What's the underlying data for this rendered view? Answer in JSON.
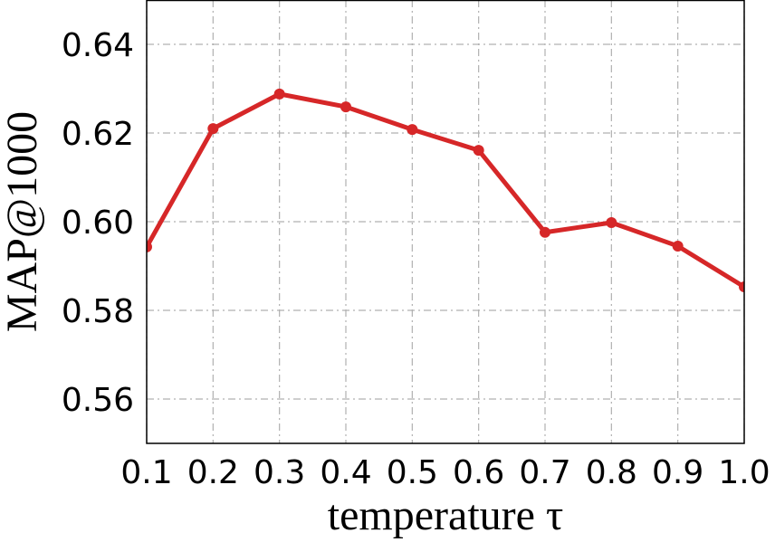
{
  "chart_data": {
    "type": "line",
    "x": [
      0.1,
      0.2,
      0.3,
      0.4,
      0.5,
      0.6,
      0.7,
      0.8,
      0.9,
      1.0
    ],
    "series": [
      {
        "color": "#d62728",
        "values": [
          0.5943,
          0.621,
          0.6288,
          0.6259,
          0.6208,
          0.6161,
          0.5976,
          0.5998,
          0.5945,
          0.5853
        ]
      }
    ],
    "xlim": [
      0.1,
      1.0
    ],
    "ylim": [
      0.55,
      0.65
    ],
    "xticks": [
      0.1,
      0.2,
      0.3,
      0.4,
      0.5,
      0.6,
      0.7,
      0.8,
      0.9,
      {
        "value": 1,
        "label": "1.0"
      }
    ],
    "yticks": [
      0.56,
      0.58,
      {
        "value": 0.6,
        "label": "0.60"
      },
      0.62,
      0.64
    ],
    "xlabel": "temperature τ",
    "ylabel": "MAP@1000",
    "grid": true
  }
}
